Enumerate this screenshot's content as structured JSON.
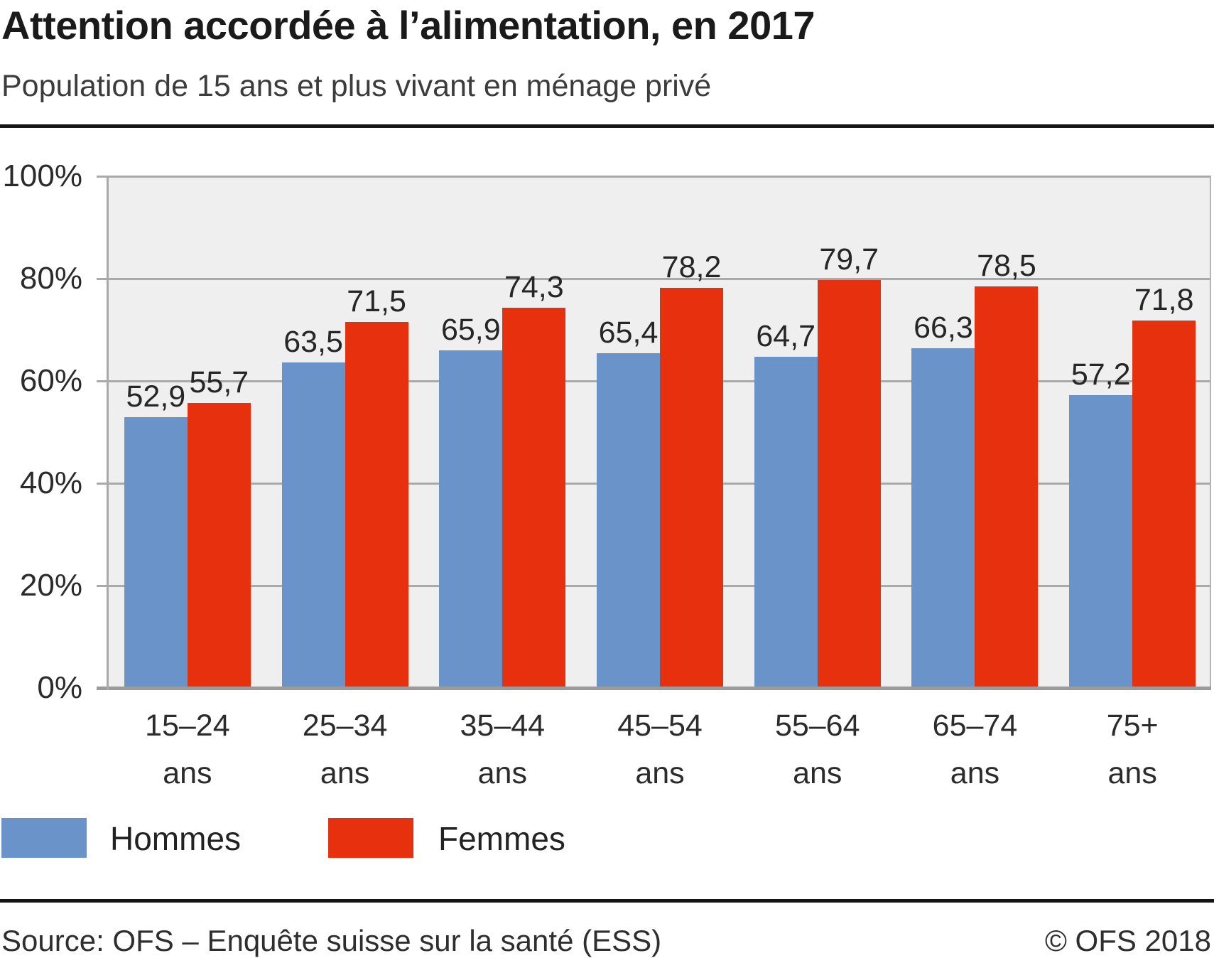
{
  "header": {
    "title": "Attention accordée à l’alimentation, en 2017",
    "subtitle": "Population de 15 ans et plus vivant en ménage privé"
  },
  "chart_data": {
    "type": "bar",
    "categories": [
      "15–24",
      "25–34",
      "35–44",
      "45–54",
      "55–64",
      "65–74",
      "75+"
    ],
    "category_unit": "ans",
    "series": [
      {
        "name": "Hommes",
        "color": "#6a93c9",
        "values": [
          52.9,
          63.5,
          65.9,
          65.4,
          64.7,
          66.3,
          57.2
        ]
      },
      {
        "name": "Femmes",
        "color": "#e7300e",
        "values": [
          55.7,
          71.5,
          74.3,
          78.2,
          79.7,
          78.5,
          71.8
        ]
      }
    ],
    "ylim": [
      0,
      100
    ],
    "yticks": [
      "100%",
      "80%",
      "60%",
      "40%",
      "20%",
      "0%"
    ],
    "grid": true,
    "decimal_separator": ",",
    "legend_position": "bottom-left",
    "plot_background": "#efefef",
    "gridline_color": "#a9a9a9"
  },
  "footer": {
    "source": "Source: OFS – Enquête suisse sur la santé (ESS)",
    "copyright": "© OFS 2018"
  }
}
